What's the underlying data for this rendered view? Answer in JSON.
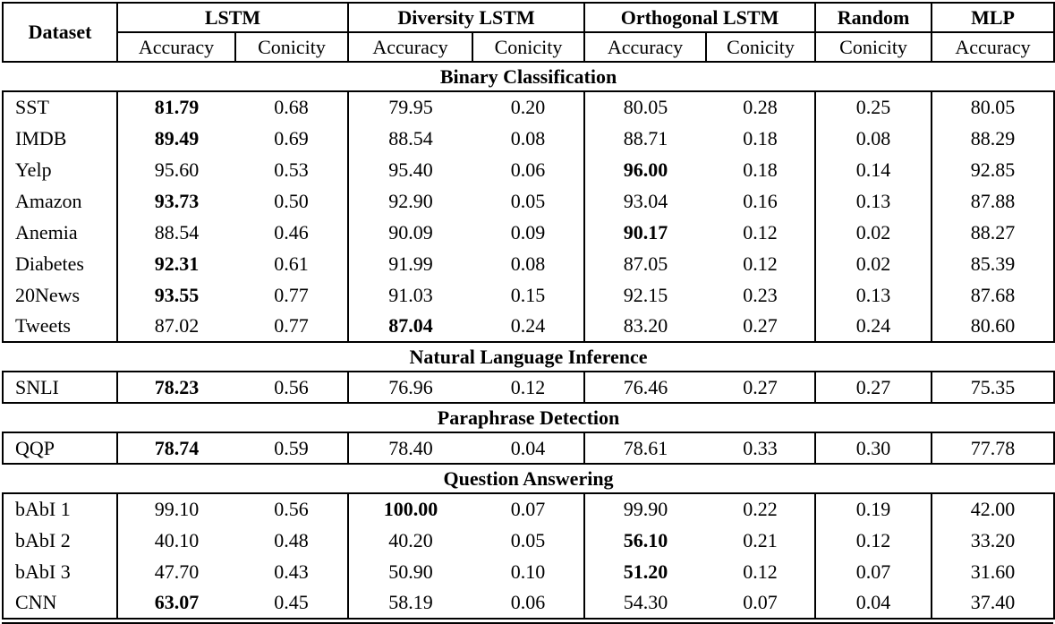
{
  "table": {
    "header": {
      "dataset_label": "Dataset",
      "groups": [
        {
          "label": "LSTM",
          "subs": [
            "Accuracy",
            "Conicity"
          ]
        },
        {
          "label": "Diversity LSTM",
          "subs": [
            "Accuracy",
            "Conicity"
          ]
        },
        {
          "label": "Orthogonal LSTM",
          "subs": [
            "Accuracy",
            "Conicity"
          ]
        },
        {
          "label": "Random",
          "subs": [
            "Conicity"
          ]
        },
        {
          "label": "MLP",
          "subs": [
            "Accuracy"
          ]
        }
      ]
    },
    "sections": [
      {
        "title": "Binary Classification",
        "rows": [
          {
            "dataset": "SST",
            "values": [
              "81.79",
              "0.68",
              "79.95",
              "0.20",
              "80.05",
              "0.28",
              "0.25",
              "80.05"
            ],
            "bold": [
              0
            ]
          },
          {
            "dataset": "IMDB",
            "values": [
              "89.49",
              "0.69",
              "88.54",
              "0.08",
              "88.71",
              "0.18",
              "0.08",
              "88.29"
            ],
            "bold": [
              0
            ]
          },
          {
            "dataset": "Yelp",
            "values": [
              "95.60",
              "0.53",
              "95.40",
              "0.06",
              "96.00",
              "0.18",
              "0.14",
              "92.85"
            ],
            "bold": [
              4
            ]
          },
          {
            "dataset": "Amazon",
            "values": [
              "93.73",
              "0.50",
              "92.90",
              "0.05",
              "93.04",
              "0.16",
              "0.13",
              "87.88"
            ],
            "bold": [
              0
            ]
          },
          {
            "dataset": "Anemia",
            "values": [
              "88.54",
              "0.46",
              "90.09",
              "0.09",
              "90.17",
              "0.12",
              "0.02",
              "88.27"
            ],
            "bold": [
              4
            ]
          },
          {
            "dataset": "Diabetes",
            "values": [
              "92.31",
              "0.61",
              "91.99",
              "0.08",
              "87.05",
              "0.12",
              "0.02",
              "85.39"
            ],
            "bold": [
              0
            ]
          },
          {
            "dataset": "20News",
            "values": [
              "93.55",
              "0.77",
              "91.03",
              "0.15",
              "92.15",
              "0.23",
              "0.13",
              "87.68"
            ],
            "bold": [
              0
            ]
          },
          {
            "dataset": "Tweets",
            "values": [
              "87.02",
              "0.77",
              "87.04",
              "0.24",
              "83.20",
              "0.27",
              "0.24",
              "80.60"
            ],
            "bold": [
              2
            ]
          }
        ]
      },
      {
        "title": "Natural Language Inference",
        "rows": [
          {
            "dataset": "SNLI",
            "values": [
              "78.23",
              "0.56",
              "76.96",
              "0.12",
              "76.46",
              "0.27",
              "0.27",
              "75.35"
            ],
            "bold": [
              0
            ]
          }
        ]
      },
      {
        "title": "Paraphrase Detection",
        "rows": [
          {
            "dataset": "QQP",
            "values": [
              "78.74",
              "0.59",
              "78.40",
              "0.04",
              "78.61",
              "0.33",
              "0.30",
              "77.78"
            ],
            "bold": [
              0
            ]
          }
        ]
      },
      {
        "title": "Question Answering",
        "rows": [
          {
            "dataset": "bAbI 1",
            "values": [
              "99.10",
              "0.56",
              "100.00",
              "0.07",
              "99.90",
              "0.22",
              "0.19",
              "42.00"
            ],
            "bold": [
              2
            ]
          },
          {
            "dataset": "bAbI 2",
            "values": [
              "40.10",
              "0.48",
              "40.20",
              "0.05",
              "56.10",
              "0.21",
              "0.12",
              "33.20"
            ],
            "bold": [
              4
            ]
          },
          {
            "dataset": "bAbI 3",
            "values": [
              "47.70",
              "0.43",
              "50.90",
              "0.10",
              "51.20",
              "0.12",
              "0.07",
              "31.60"
            ],
            "bold": [
              4
            ]
          },
          {
            "dataset": "CNN",
            "values": [
              "63.07",
              "0.45",
              "58.19",
              "0.06",
              "54.30",
              "0.07",
              "0.04",
              "37.40"
            ],
            "bold": [
              0
            ]
          }
        ]
      }
    ]
  }
}
